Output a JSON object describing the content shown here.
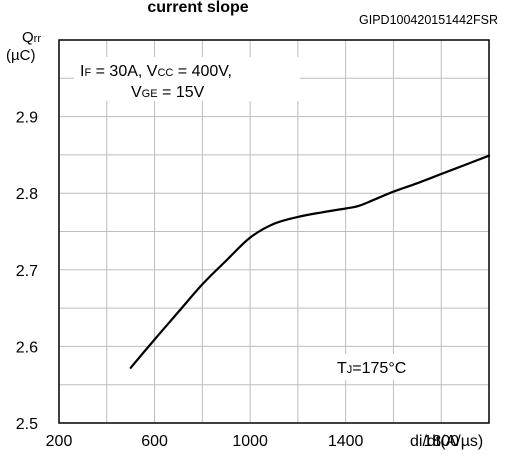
{
  "chart_data": {
    "type": "line",
    "title": "current slope",
    "figure_id": "GIPD100420151442FSR",
    "ylabel": {
      "symbol": "Q",
      "sub": "rr",
      "unit": "(µC)"
    },
    "xlabel": "di/dt(A/µs)",
    "xlim": [
      200,
      2000
    ],
    "ylim": [
      2.5,
      3.0
    ],
    "x_major_step": 200,
    "y_major_step": 0.05,
    "x_tick_labels": [
      {
        "v": 200,
        "label": "200"
      },
      {
        "v": 600,
        "label": "600"
      },
      {
        "v": 1000,
        "label": "1000"
      },
      {
        "v": 1400,
        "label": "1400"
      },
      {
        "v": 1800,
        "label": "1800"
      }
    ],
    "y_tick_labels": [
      {
        "v": 2.5,
        "label": "2.5"
      },
      {
        "v": 2.6,
        "label": "2.6"
      },
      {
        "v": 2.7,
        "label": "2.7"
      },
      {
        "v": 2.8,
        "label": "2.8"
      },
      {
        "v": 2.9,
        "label": "2.9"
      }
    ],
    "grid": true,
    "conditions": {
      "line1": [
        {
          "t": "I",
          "sub": "F"
        },
        {
          "t": " = 30A, V"
        },
        {
          "t": "",
          "sub": "CC"
        },
        {
          "t": " = 400V,"
        }
      ],
      "line2": [
        {
          "t": "V",
          "sub": "GE"
        },
        {
          "t": " = 15V"
        }
      ]
    },
    "temperature": {
      "t": "T",
      "sub": "J",
      "rest": "=175°C"
    },
    "series": [
      {
        "x": [
          500,
          600,
          700,
          800,
          900,
          1000,
          1100,
          1200,
          1300,
          1400,
          1450,
          1500,
          1600,
          1700,
          1800,
          1900,
          2000
        ],
        "y": [
          2.572,
          2.609,
          2.645,
          2.681,
          2.712,
          2.742,
          2.76,
          2.769,
          2.775,
          2.78,
          2.783,
          2.789,
          2.802,
          2.813,
          2.825,
          2.837,
          2.849
        ]
      }
    ]
  }
}
